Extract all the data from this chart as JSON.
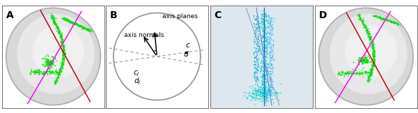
{
  "panel_labels": [
    "A",
    "B",
    "C",
    "D"
  ],
  "green_color": "#00dd00",
  "magenta_color": "#ff00ff",
  "red_color": "#cc0000",
  "cyan_color": "#00cccc",
  "cyan2_color": "#44bbff",
  "blue_line_color": "#4466ee",
  "panel_label_fontsize": 10,
  "annotation_fontsize": 6.5,
  "figsize": [
    6.0,
    1.62
  ],
  "dpi": 100,
  "sphere_edge": "#aaaaaa",
  "sphere_fill": "#e0e0e0",
  "sphere_center_fill": "#ebebeb"
}
